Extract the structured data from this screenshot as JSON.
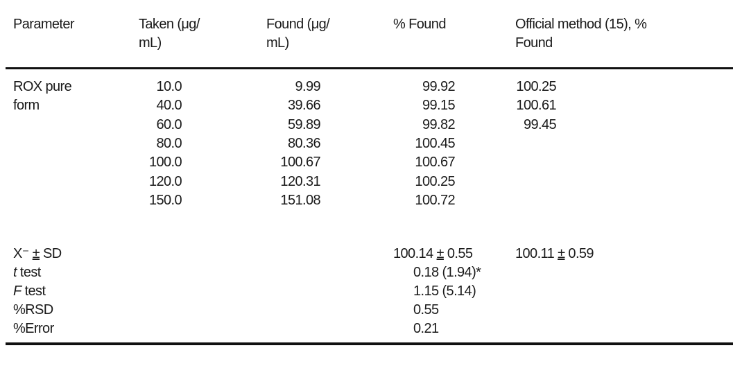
{
  "headers": {
    "parameter": "Parameter",
    "taken": [
      "Taken (μg/",
      "mL)"
    ],
    "found": [
      "Found (μg/",
      "mL)"
    ],
    "percent_found": "% Found",
    "official": [
      "Official method (15), %",
      "Found"
    ]
  },
  "sample_label": [
    "ROX pure",
    "form"
  ],
  "rows": [
    {
      "taken": "10.0",
      "found": "9.99",
      "percent_found": "99.92",
      "official": "100.25"
    },
    {
      "taken": "40.0",
      "found": "39.66",
      "percent_found": "99.15",
      "official": "100.61"
    },
    {
      "taken": "60.0",
      "found": "59.89",
      "percent_found": "99.82",
      "official": "99.45"
    },
    {
      "taken": "80.0",
      "found": "80.36",
      "percent_found": "100.45"
    },
    {
      "taken": "100.0",
      "found": "100.67",
      "percent_found": "100.67"
    },
    {
      "taken": "120.0",
      "found": "120.31",
      "percent_found": "100.25"
    },
    {
      "taken": "150.0",
      "found": "151.08",
      "percent_found": "100.72"
    }
  ],
  "stats": {
    "mean": {
      "label_x": "X⁻",
      "label_pm": "±",
      "label_sd": "SD",
      "method_mean": "100.14",
      "method_sd": "0.55",
      "official_mean": "100.11",
      "official_sd": "0.59",
      "pm": "±"
    },
    "t_test": {
      "label_italic": "t",
      "label_rest": " test",
      "value": "0.18 (1.94)*"
    },
    "f_test": {
      "label_italic": "F",
      "label_rest": " test",
      "value": "1.15 (5.14)"
    },
    "rsd": {
      "label": "%RSD",
      "value": "0.55"
    },
    "error": {
      "label": "%Error",
      "value": "0.21"
    }
  }
}
